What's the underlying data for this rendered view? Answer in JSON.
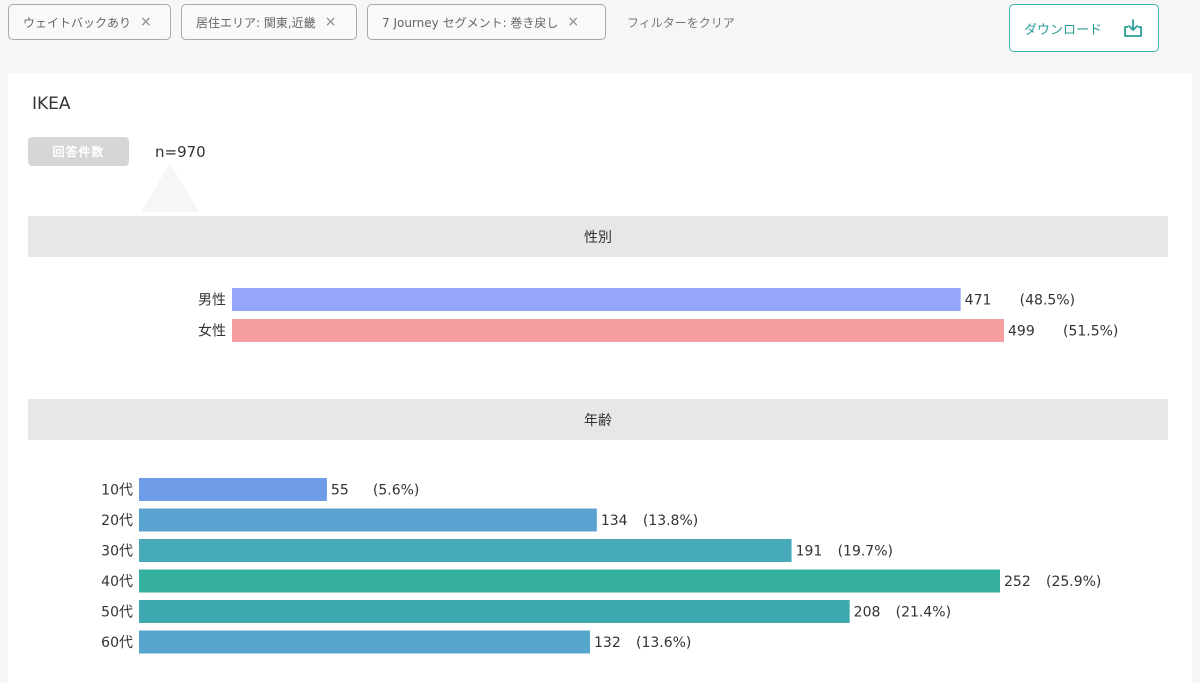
{
  "filters": {
    "chips": [
      {
        "label": "ウェイトバックあり"
      },
      {
        "label": "居住エリア: 関東,近畿"
      },
      {
        "label": "7 Journey セグメント: 巻き戻し"
      }
    ],
    "remove_glyph": "×",
    "clear_label": "フィルターをクリア",
    "download_label": "ダウンロード"
  },
  "report": {
    "brand": "IKEA",
    "count_badge": "回答件数",
    "count_value": "n=970"
  },
  "colors": {
    "male": "#96a5fc",
    "female": "#f59e9f",
    "age_10s": "#6f9ce8",
    "age_20s": "#5aa3d1",
    "age_30s": "#47aab8",
    "age_40s": "#35b0a0",
    "age_50s": "#3ea9b1",
    "age_60s": "#55a5cc",
    "accent": "#3fb2ab"
  },
  "chart_data": [
    {
      "type": "bar",
      "orientation": "horizontal",
      "title": "性別",
      "categories": [
        "男性",
        "女性"
      ],
      "values": [
        471,
        499
      ],
      "percent_labels": [
        "(48.5%)",
        "(51.5%)"
      ],
      "xlim": [
        0,
        499
      ]
    },
    {
      "type": "bar",
      "orientation": "horizontal",
      "title": "年齢",
      "categories": [
        "10代",
        "20代",
        "30代",
        "40代",
        "50代",
        "60代"
      ],
      "values": [
        55,
        134,
        191,
        252,
        208,
        132
      ],
      "percent_labels": [
        "(5.6%)",
        "(13.8%)",
        "(19.7%)",
        "(25.9%)",
        "(21.4%)",
        "(13.6%)"
      ],
      "xlim": [
        0,
        252
      ]
    }
  ]
}
